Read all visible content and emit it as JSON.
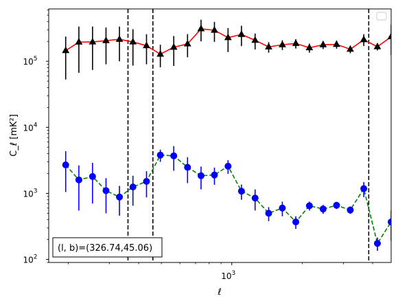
{
  "chart_data": {
    "type": "scatter",
    "title": "",
    "xlabel": "ℓ",
    "ylabel": "C_ℓ  [mK²]",
    "xscale": "log",
    "yscale": "log",
    "xlim": [
      165,
      4800
    ],
    "ylim": [
      90,
      620000
    ],
    "grid": false,
    "legend": {
      "placement": "top-right",
      "entries": []
    },
    "x_ticks": [
      {
        "value": 1000,
        "base": "10",
        "exp": "3"
      }
    ],
    "y_ticks": [
      {
        "value": 100,
        "base": "10",
        "exp": "2"
      },
      {
        "value": 1000,
        "base": "10",
        "exp": "3"
      },
      {
        "value": 10000,
        "base": "10",
        "exp": "4"
      },
      {
        "value": 100000,
        "base": "10",
        "exp": "5"
      }
    ],
    "vlines": [
      360,
      460,
      3850
    ],
    "annotation": "(l, b)=(326.74,45.06)",
    "series": [
      {
        "marker": "triangle",
        "color": "#000000",
        "line_color": "#ff0000",
        "line_style": "solid",
        "x": [
          195,
          222,
          254,
          290,
          331,
          378,
          432,
          495,
          565,
          647,
          739,
          843,
          964,
          1100,
          1258,
          1438,
          1645,
          1878,
          2147,
          2457,
          2805,
          3211,
          3667,
          4193,
          4800
        ],
        "y": [
          145000,
          195000,
          196000,
          205000,
          215000,
          196000,
          172000,
          128000,
          163000,
          183000,
          310000,
          295000,
          228000,
          255000,
          208000,
          165000,
          178000,
          186000,
          160000,
          178000,
          180000,
          152000,
          212000,
          166000,
          235000
        ],
        "err_low": [
          92000,
          128000,
          122000,
          115000,
          115000,
          110000,
          82000,
          47000,
          78000,
          68000,
          110000,
          98000,
          90000,
          85000,
          57000,
          30000,
          30000,
          30000,
          25000,
          25000,
          25000,
          20000,
          42000,
          20000,
          110000
        ],
        "err_high": [
          92000,
          140000,
          140000,
          120000,
          120000,
          110000,
          85000,
          50000,
          78000,
          75000,
          115000,
          100000,
          90000,
          90000,
          55000,
          30000,
          30000,
          30000,
          25000,
          25000,
          25000,
          20000,
          45000,
          20000,
          120000
        ]
      },
      {
        "marker": "circle",
        "color": "#0000ff",
        "line_color": "#008000",
        "line_style": "dashed",
        "x": [
          195,
          222,
          254,
          290,
          331,
          378,
          432,
          495,
          565,
          647,
          739,
          843,
          964,
          1100,
          1258,
          1438,
          1645,
          1878,
          2147,
          2457,
          2805,
          3211,
          3667,
          4193,
          4800
        ],
        "y": [
          2700,
          1600,
          1800,
          1100,
          880,
          1250,
          1520,
          3800,
          3700,
          2480,
          1850,
          1900,
          2580,
          1080,
          850,
          500,
          600,
          370,
          650,
          580,
          660,
          560,
          1180,
          175,
          370
        ],
        "err_low": [
          1650,
          1050,
          1100,
          600,
          420,
          600,
          650,
          800,
          1500,
          1050,
          700,
          550,
          600,
          280,
          300,
          120,
          150,
          80,
          100,
          90,
          80,
          70,
          300,
          40,
          180
        ],
        "err_high": [
          1650,
          1050,
          1100,
          600,
          420,
          600,
          650,
          800,
          1500,
          1050,
          700,
          550,
          600,
          280,
          300,
          120,
          150,
          80,
          100,
          90,
          80,
          70,
          300,
          40,
          180
        ]
      }
    ]
  }
}
